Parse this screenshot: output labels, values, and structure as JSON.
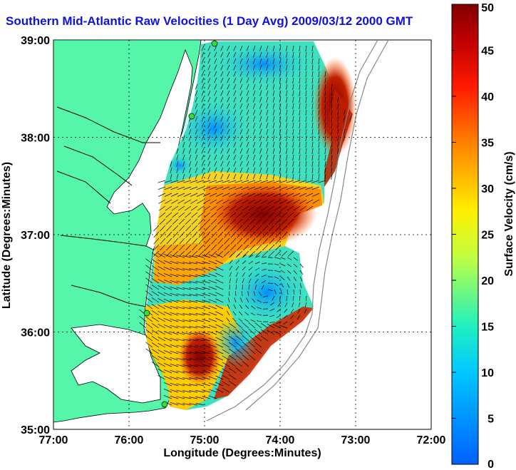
{
  "title": "Southern Mid-Atlantic Raw Velocities (1 Day Avg) 2009/03/12 2000 GMT",
  "xlabel": "Longitude (Degrees:Minutes)",
  "ylabel": "Latitude (Degrees:Minutes)",
  "x_ticks": [
    "77:00",
    "76:00",
    "75:00",
    "74:00",
    "73:00",
    "72:00"
  ],
  "y_ticks": [
    "39:00",
    "38:00",
    "37:00",
    "36:00",
    "35:00"
  ],
  "colorbar": {
    "label": "Surface Velocity (cm/s)",
    "ticks": [
      "0",
      "5",
      "10",
      "15",
      "20",
      "25",
      "30",
      "35",
      "40",
      "45",
      "50"
    ],
    "min": 0,
    "max": 50
  },
  "colors": {
    "land": "#55f5aa",
    "water": "#ffffff",
    "title": "#1010e0",
    "station": "#33dd33"
  },
  "chart_data": {
    "type": "heatmap",
    "xlim": [
      -77,
      -72
    ],
    "ylim": [
      35,
      39
    ],
    "colormap": "jet",
    "value_range": [
      0,
      50
    ],
    "grid": true,
    "description_items": [
      "radar stations",
      "velocity vectors"
    ]
  }
}
